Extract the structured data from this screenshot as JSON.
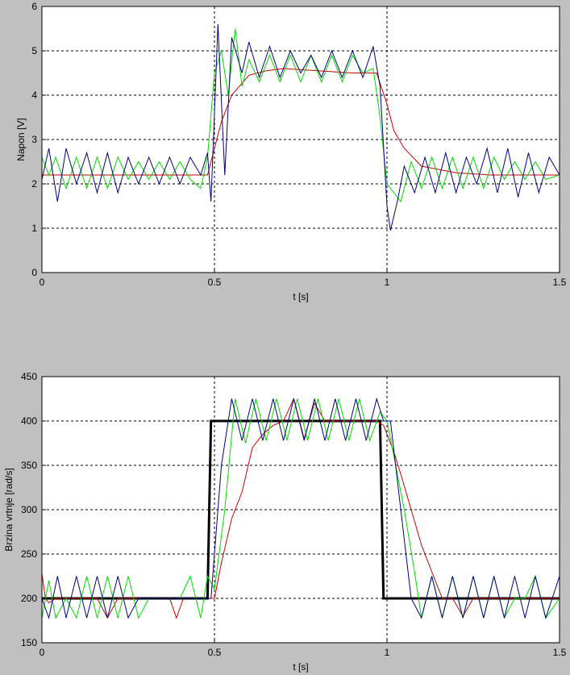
{
  "colors": {
    "background": "#c0c0c0",
    "axes": "#ffffff",
    "red": "#cc0000",
    "green": "#00dd00",
    "blue": "#000080",
    "black": "#000000"
  },
  "chart_data": [
    {
      "type": "line",
      "title": "",
      "xlabel": "t [s]",
      "ylabel": "Napon [V]",
      "xlim": [
        0,
        1.5
      ],
      "ylim": [
        0,
        6
      ],
      "xticks": [
        "0",
        "0.5",
        "1",
        "1.5"
      ],
      "yticks": [
        "0",
        "1",
        "2",
        "3",
        "4",
        "5",
        "6"
      ],
      "grid": "dashed",
      "series": [
        {
          "name": "red",
          "color": "#cc0000",
          "x": [
            0,
            0.1,
            0.2,
            0.3,
            0.4,
            0.48,
            0.5,
            0.52,
            0.55,
            0.6,
            0.65,
            0.7,
            0.8,
            0.9,
            0.97,
            1.0,
            1.02,
            1.05,
            1.1,
            1.2,
            1.3,
            1.4,
            1.5
          ],
          "y": [
            2.2,
            2.2,
            2.2,
            2.2,
            2.2,
            2.2,
            2.8,
            3.4,
            4.0,
            4.45,
            4.55,
            4.6,
            4.55,
            4.5,
            4.5,
            3.8,
            3.2,
            2.8,
            2.4,
            2.25,
            2.2,
            2.2,
            2.2
          ]
        },
        {
          "name": "green",
          "color": "#00dd00",
          "x": [
            0,
            0.02,
            0.04,
            0.07,
            0.1,
            0.13,
            0.16,
            0.19,
            0.22,
            0.25,
            0.28,
            0.31,
            0.34,
            0.37,
            0.4,
            0.43,
            0.46,
            0.48,
            0.5,
            0.52,
            0.54,
            0.56,
            0.58,
            0.6,
            0.63,
            0.66,
            0.69,
            0.72,
            0.75,
            0.78,
            0.81,
            0.84,
            0.87,
            0.9,
            0.93,
            0.96,
            0.98,
            1.0,
            1.02,
            1.04,
            1.07,
            1.1,
            1.13,
            1.16,
            1.19,
            1.22,
            1.25,
            1.28,
            1.31,
            1.34,
            1.37,
            1.4,
            1.43,
            1.46,
            1.5
          ],
          "y": [
            2.6,
            2.2,
            2.6,
            1.9,
            2.6,
            1.9,
            2.6,
            1.9,
            2.6,
            2.1,
            2.5,
            2.1,
            2.5,
            2.1,
            2.5,
            2.1,
            1.9,
            2.6,
            4.5,
            5.0,
            4.0,
            5.5,
            4.2,
            4.8,
            4.3,
            4.9,
            4.3,
            4.9,
            4.3,
            4.9,
            4.3,
            4.9,
            4.3,
            4.9,
            4.5,
            4.6,
            3.5,
            2.0,
            1.8,
            1.6,
            2.5,
            1.9,
            2.6,
            1.9,
            2.6,
            1.9,
            2.6,
            1.9,
            2.6,
            2.1,
            2.5,
            2.1,
            2.5,
            2.1,
            2.2
          ]
        },
        {
          "name": "blue",
          "color": "#000080",
          "x": [
            0,
            0.02,
            0.045,
            0.07,
            0.1,
            0.13,
            0.16,
            0.19,
            0.22,
            0.25,
            0.28,
            0.31,
            0.34,
            0.37,
            0.4,
            0.43,
            0.46,
            0.48,
            0.49,
            0.51,
            0.53,
            0.55,
            0.58,
            0.6,
            0.63,
            0.66,
            0.69,
            0.72,
            0.75,
            0.78,
            0.81,
            0.84,
            0.87,
            0.9,
            0.93,
            0.96,
            0.98,
            1.0,
            1.01,
            1.03,
            1.05,
            1.08,
            1.11,
            1.14,
            1.17,
            1.2,
            1.23,
            1.26,
            1.29,
            1.32,
            1.35,
            1.38,
            1.41,
            1.44,
            1.47,
            1.5
          ],
          "y": [
            2.1,
            2.8,
            1.6,
            2.8,
            2.0,
            2.7,
            1.8,
            2.7,
            1.8,
            2.6,
            2.0,
            2.6,
            2.0,
            2.6,
            2.0,
            2.6,
            2.2,
            2.7,
            1.6,
            5.6,
            2.2,
            5.3,
            4.5,
            5.2,
            4.4,
            5.1,
            4.4,
            5.0,
            4.5,
            4.9,
            4.4,
            5.0,
            4.4,
            5.0,
            4.4,
            5.1,
            4.2,
            1.5,
            0.95,
            1.6,
            2.4,
            1.8,
            2.6,
            1.8,
            2.7,
            1.8,
            2.6,
            2.0,
            2.8,
            1.8,
            2.8,
            1.7,
            2.7,
            1.8,
            2.6,
            2.2
          ]
        }
      ]
    },
    {
      "type": "line",
      "title": "",
      "xlabel": "t [s]",
      "ylabel": "Brzina vrtnje [rad/s]",
      "xlim": [
        0,
        1.5
      ],
      "ylim": [
        150,
        450
      ],
      "xticks": [
        "0",
        "0.5",
        "1",
        "1.5"
      ],
      "yticks": [
        "150",
        "200",
        "250",
        "300",
        "350",
        "400",
        "450"
      ],
      "grid": "dashed",
      "series": [
        {
          "name": "reference",
          "color": "#000000",
          "x": [
            0,
            0.48,
            0.49,
            0.98,
            0.99,
            1.5
          ],
          "y": [
            200,
            200,
            400,
            400,
            200,
            200
          ]
        },
        {
          "name": "red",
          "color": "#cc0000",
          "x": [
            0,
            0.01,
            0.02,
            0.04,
            0.07,
            0.1,
            0.13,
            0.16,
            0.19,
            0.22,
            0.25,
            0.28,
            0.31,
            0.34,
            0.37,
            0.39,
            0.41,
            0.44,
            0.47,
            0.5,
            0.52,
            0.55,
            0.58,
            0.61,
            0.64,
            0.67,
            0.7,
            0.73,
            0.76,
            0.79,
            0.82,
            0.85,
            0.88,
            0.91,
            0.94,
            0.97,
            0.99,
            1.02,
            1.04,
            1.07,
            1.1,
            1.13,
            1.16,
            1.19,
            1.22,
            1.25,
            1.28,
            1.31,
            1.34,
            1.37,
            1.4,
            1.43,
            1.46,
            1.5
          ],
          "y": [
            228,
            200,
            195,
            200,
            200,
            200,
            200,
            200,
            178,
            200,
            200,
            200,
            200,
            200,
            200,
            178,
            200,
            200,
            200,
            200,
            240,
            290,
            320,
            370,
            385,
            395,
            400,
            425,
            380,
            420,
            400,
            400,
            400,
            400,
            400,
            400,
            395,
            365,
            340,
            300,
            260,
            230,
            200,
            200,
            180,
            200,
            200,
            200,
            200,
            200,
            200,
            200,
            200,
            200
          ]
        },
        {
          "name": "green",
          "color": "#00dd00",
          "x": [
            0,
            0.02,
            0.04,
            0.07,
            0.1,
            0.13,
            0.16,
            0.19,
            0.22,
            0.25,
            0.28,
            0.31,
            0.34,
            0.37,
            0.4,
            0.43,
            0.46,
            0.48,
            0.5,
            0.53,
            0.56,
            0.59,
            0.62,
            0.65,
            0.68,
            0.71,
            0.74,
            0.77,
            0.8,
            0.83,
            0.86,
            0.89,
            0.92,
            0.95,
            0.98,
            1.0,
            1.02,
            1.05,
            1.08,
            1.1,
            1.13,
            1.16,
            1.19,
            1.22,
            1.25,
            1.28,
            1.31,
            1.34,
            1.37,
            1.4,
            1.43,
            1.46,
            1.5
          ],
          "y": [
            178,
            220,
            178,
            200,
            178,
            225,
            178,
            225,
            178,
            225,
            178,
            200,
            200,
            200,
            200,
            225,
            178,
            225,
            210,
            300,
            425,
            375,
            425,
            378,
            425,
            378,
            425,
            378,
            425,
            378,
            425,
            378,
            425,
            378,
            410,
            400,
            360,
            300,
            230,
            178,
            225,
            178,
            225,
            178,
            225,
            178,
            225,
            178,
            200,
            200,
            225,
            178,
            200
          ]
        },
        {
          "name": "blue",
          "color": "#000080",
          "x": [
            0,
            0.02,
            0.045,
            0.07,
            0.1,
            0.13,
            0.16,
            0.19,
            0.22,
            0.25,
            0.28,
            0.31,
            0.34,
            0.37,
            0.4,
            0.43,
            0.46,
            0.49,
            0.52,
            0.55,
            0.58,
            0.61,
            0.64,
            0.67,
            0.7,
            0.73,
            0.76,
            0.79,
            0.82,
            0.85,
            0.88,
            0.91,
            0.94,
            0.97,
            0.99,
            1.01,
            1.04,
            1.07,
            1.1,
            1.13,
            1.16,
            1.19,
            1.22,
            1.25,
            1.28,
            1.31,
            1.34,
            1.37,
            1.4,
            1.43,
            1.46,
            1.5
          ],
          "y": [
            200,
            178,
            225,
            178,
            225,
            178,
            225,
            178,
            225,
            178,
            200,
            200,
            200,
            200,
            200,
            200,
            200,
            200,
            350,
            425,
            378,
            425,
            378,
            425,
            378,
            425,
            378,
            425,
            378,
            425,
            378,
            425,
            378,
            425,
            400,
            400,
            300,
            200,
            178,
            225,
            178,
            225,
            178,
            225,
            178,
            225,
            178,
            225,
            178,
            225,
            178,
            225
          ]
        }
      ]
    }
  ]
}
